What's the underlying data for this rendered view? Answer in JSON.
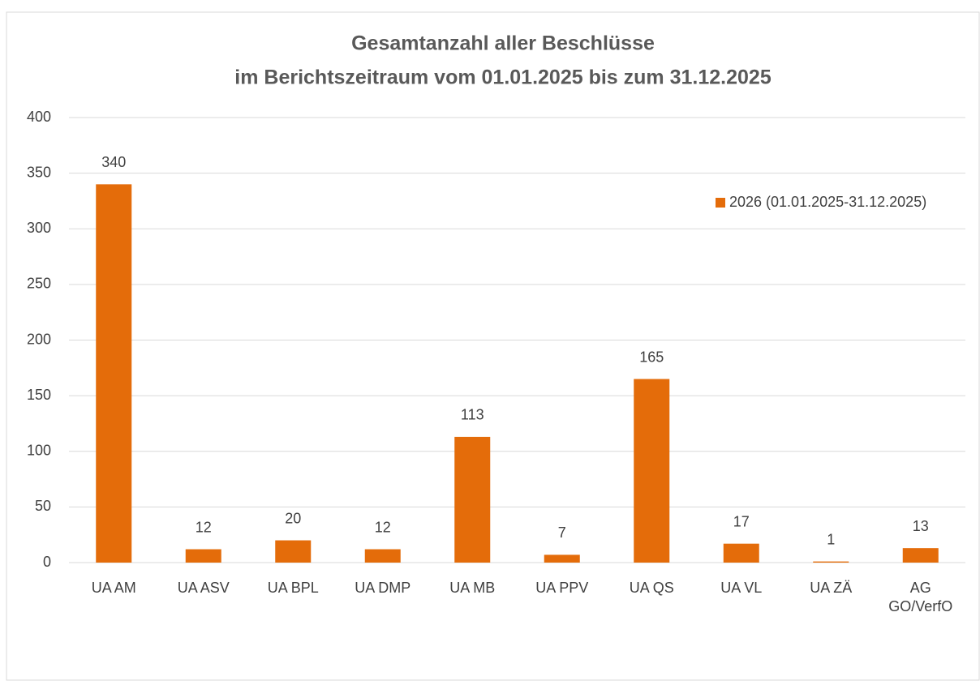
{
  "chart_data": {
    "type": "bar",
    "title": [
      "Gesamtanzahl aller Beschlüsse",
      "im Berichtszeitraum vom 01.01.2025 bis zum 31.12.2025"
    ],
    "categories": [
      "UA AM",
      "UA ASV",
      "UA BPL",
      "UA DMP",
      "UA MB",
      "UA PPV",
      "UA QS",
      "UA VL",
      "UA ZÄ",
      "AG GO/VerfO"
    ],
    "series": [
      {
        "name": "2026 (01.01.2025-31.12.2025)",
        "color": "#e46c0a",
        "values": [
          340,
          12,
          20,
          12,
          113,
          7,
          165,
          17,
          1,
          13
        ]
      }
    ],
    "ylim": [
      0,
      400
    ],
    "yticks": [
      0,
      50,
      100,
      150,
      200,
      250,
      300,
      350,
      400
    ],
    "grid": true,
    "legend": "upper right"
  }
}
